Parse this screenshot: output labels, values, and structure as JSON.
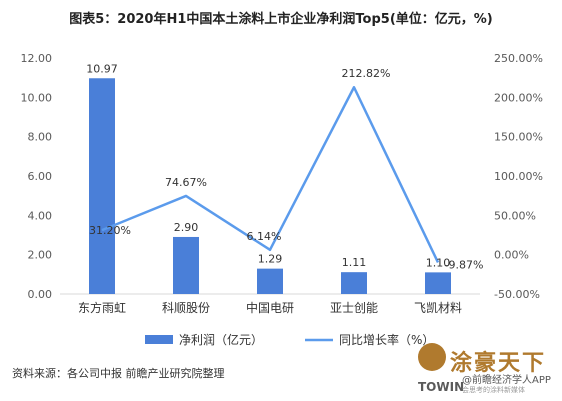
{
  "title": "图表5：2020年H1中国本土涂料上市企业净利润Top5(单位：亿元，%)",
  "source": "资料来源：各公司中报  前瞻产业研究院整理",
  "watermark": {
    "logo_text": "涂豪天下",
    "credit": "@前瞻经济学人APP",
    "brand": "TOWIN",
    "brand_sub": "会思考的涂料新媒体"
  },
  "colors": {
    "bar": "#4a7fd8",
    "line": "#5b9bec",
    "axis": "#595959",
    "grid": "#d9d9d9"
  },
  "chart_data": {
    "type": "bar",
    "categories": [
      "东方雨虹",
      "科顺股份",
      "中国电研",
      "亚士创能",
      "飞凯材料"
    ],
    "series": [
      {
        "name": "净利润（亿元）",
        "type": "bar",
        "axis": "left",
        "values": [
          10.97,
          2.9,
          1.29,
          1.11,
          1.1
        ],
        "labels": [
          "10.97",
          "2.90",
          "1.29",
          "1.11",
          "1.10"
        ]
      },
      {
        "name": "同比增长率（%）",
        "type": "line",
        "axis": "right",
        "values": [
          31.2,
          74.67,
          6.14,
          212.82,
          -9.87
        ],
        "labels": [
          "31.20%",
          "74.67%",
          "6.14%",
          "212.82%",
          "-9.87%"
        ]
      }
    ],
    "y_left": {
      "range": [
        0,
        12
      ],
      "ticks": [
        "0.00",
        "2.00",
        "4.00",
        "6.00",
        "8.00",
        "10.00",
        "12.00"
      ]
    },
    "y_right": {
      "range": [
        -50,
        250
      ],
      "ticks": [
        "-50.00%",
        "0.00%",
        "50.00%",
        "100.00%",
        "150.00%",
        "200.00%",
        "250.00%"
      ]
    },
    "grid": false,
    "legend_position": "bottom"
  }
}
